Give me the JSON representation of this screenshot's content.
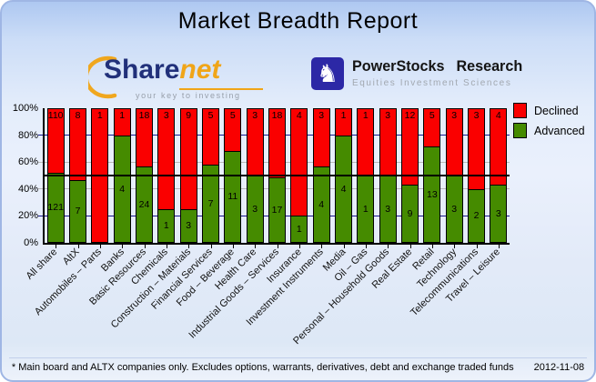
{
  "title": "Market Breadth Report",
  "logos": {
    "sharenet": {
      "name_part1": "Share",
      "name_part2": "net",
      "tagline": "your key to investing"
    },
    "powerstocks": {
      "name": "PowerStocks Research",
      "subtitle": "Equities Investment Sciences",
      "knight_icon": "♞"
    }
  },
  "chart_data": {
    "type": "bar",
    "variant": "stacked-100-percent",
    "title": "Market Breadth Report",
    "categories": [
      "All share",
      "AltX",
      "Automobiles – Parts",
      "Banks",
      "Basic Resources",
      "Chemicals",
      "Construction – Materials",
      "Financial Services",
      "Food – Beverage",
      "Health Care",
      "Industrial Goods – Services",
      "Insurance",
      "Investment Instruments",
      "Media",
      "Oil – Gas",
      "Personal – Household Goods",
      "Real Estate",
      "Retail",
      "Technology",
      "Telecommunications",
      "Travel – Leisure"
    ],
    "series": [
      {
        "name": "Declined",
        "color": "#fa0000",
        "values": [
          110,
          8,
          1,
          1,
          18,
          3,
          9,
          5,
          5,
          3,
          18,
          4,
          3,
          1,
          1,
          3,
          12,
          5,
          3,
          3,
          4
        ]
      },
      {
        "name": "Advanced",
        "color": "#458b00",
        "values": [
          121,
          7,
          0,
          4,
          24,
          1,
          3,
          7,
          11,
          3,
          17,
          1,
          4,
          4,
          1,
          3,
          9,
          13,
          3,
          2,
          3
        ]
      }
    ],
    "ylim": [
      0,
      100
    ],
    "ytick_labels": [
      "0%",
      "20%",
      "40%",
      "60%",
      "80%",
      "100%"
    ],
    "grid": true,
    "gridline_major_color": "#16168c",
    "gridline_minor_color": "#b9b9b9",
    "reference_line_pct": 50,
    "reference_line_color": "#000000",
    "legend_position": "top-right"
  },
  "footer": {
    "note": "* Main board and ALTX companies only. Excludes options, warrants, derivatives, debt and exchange traded funds",
    "date": "2012-11-08"
  }
}
